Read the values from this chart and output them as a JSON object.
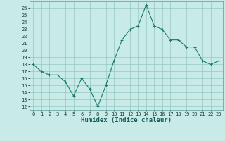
{
  "x": [
    0,
    1,
    2,
    3,
    4,
    5,
    6,
    7,
    8,
    9,
    10,
    11,
    12,
    13,
    14,
    15,
    16,
    17,
    18,
    19,
    20,
    21,
    22,
    23
  ],
  "y": [
    18.0,
    17.0,
    16.5,
    16.5,
    15.5,
    13.5,
    16.0,
    14.5,
    12.0,
    15.0,
    18.5,
    21.5,
    23.0,
    23.5,
    26.5,
    23.5,
    23.0,
    21.5,
    21.5,
    20.5,
    20.5,
    18.5,
    18.0,
    18.5
  ],
  "xlabel": "Humidex (Indice chaleur)",
  "ylim_min": 11.5,
  "ylim_max": 27.0,
  "xlim_min": -0.5,
  "xlim_max": 23.5,
  "yticks": [
    12,
    13,
    14,
    15,
    16,
    17,
    18,
    19,
    20,
    21,
    22,
    23,
    24,
    25,
    26
  ],
  "xticks": [
    0,
    1,
    2,
    3,
    4,
    5,
    6,
    7,
    8,
    9,
    10,
    11,
    12,
    13,
    14,
    15,
    16,
    17,
    18,
    19,
    20,
    21,
    22,
    23
  ],
  "line_color": "#1a7a6e",
  "marker": "+",
  "bg_color": "#c8ebe8",
  "grid_color": "#8bbfbb",
  "tick_fontsize": 5.0,
  "xlabel_fontsize": 6.5,
  "linewidth": 0.8,
  "markersize": 3.5,
  "markeredgewidth": 0.8
}
